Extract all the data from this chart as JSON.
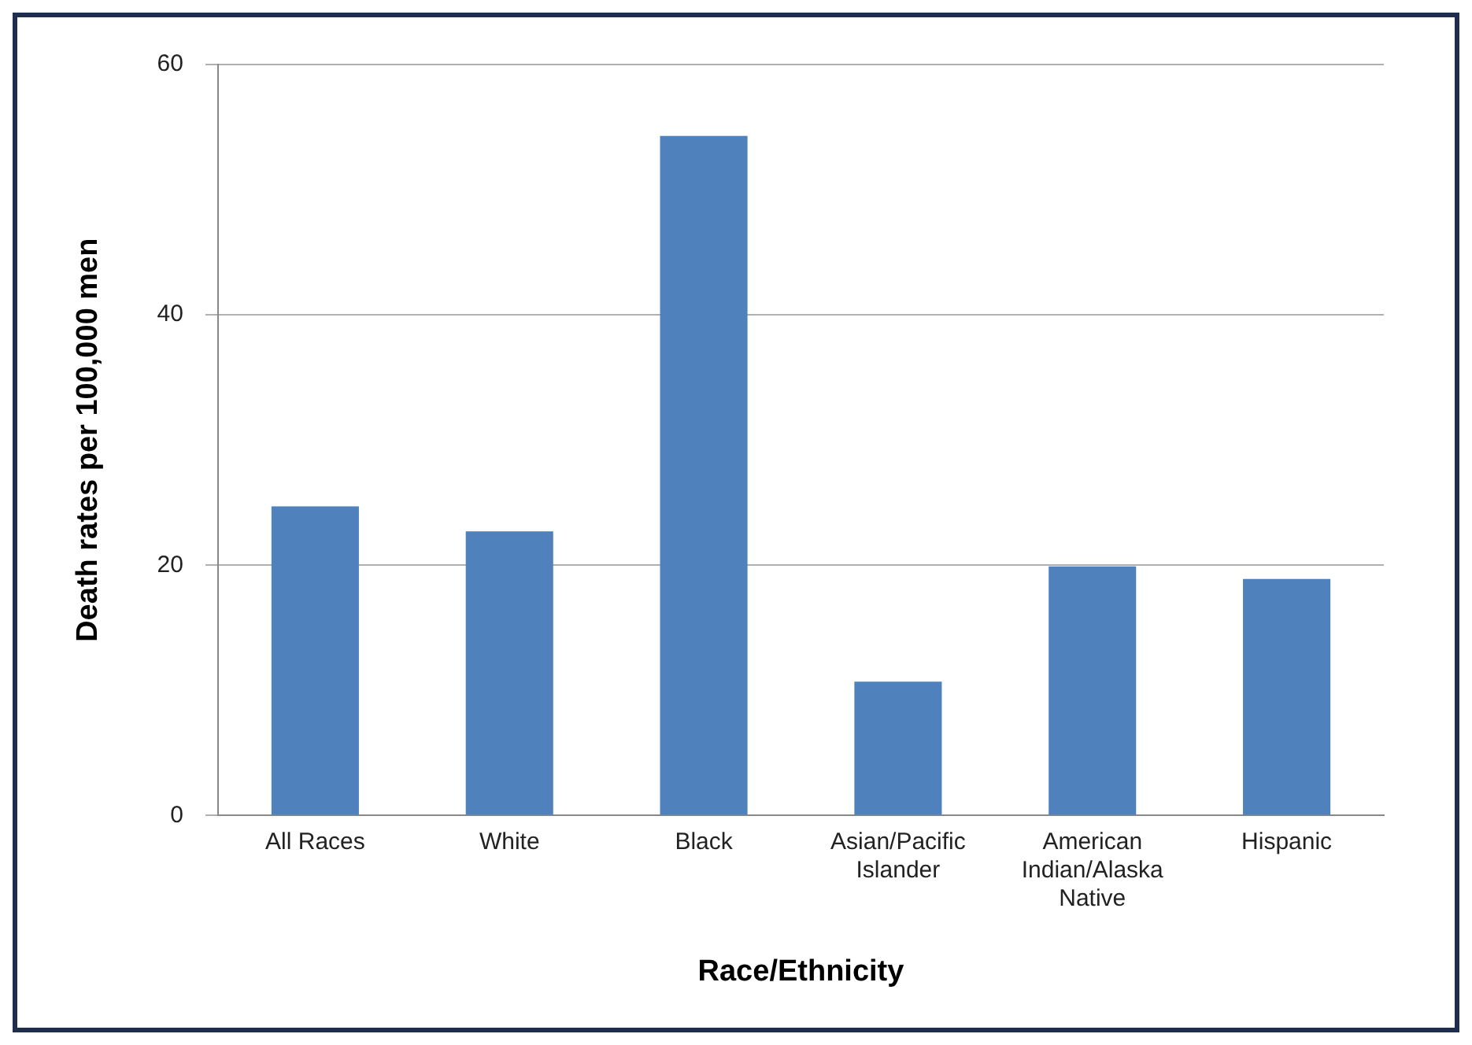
{
  "chart_data": {
    "type": "bar",
    "xlabel": "Race/Ethnicity",
    "ylabel": "Death rates per 100,000 men",
    "categories": [
      "All Races",
      "White",
      "Black",
      "Asian/Pacific Islander",
      "American Indian/Alaska Native",
      "Hispanic"
    ],
    "values": [
      24.7,
      22.7,
      54.3,
      10.7,
      19.9,
      18.9
    ],
    "color": "#4f81bd",
    "ylim": [
      0,
      60
    ],
    "yticks": [
      0,
      20,
      40,
      60
    ],
    "grid": "y",
    "legend": false
  }
}
